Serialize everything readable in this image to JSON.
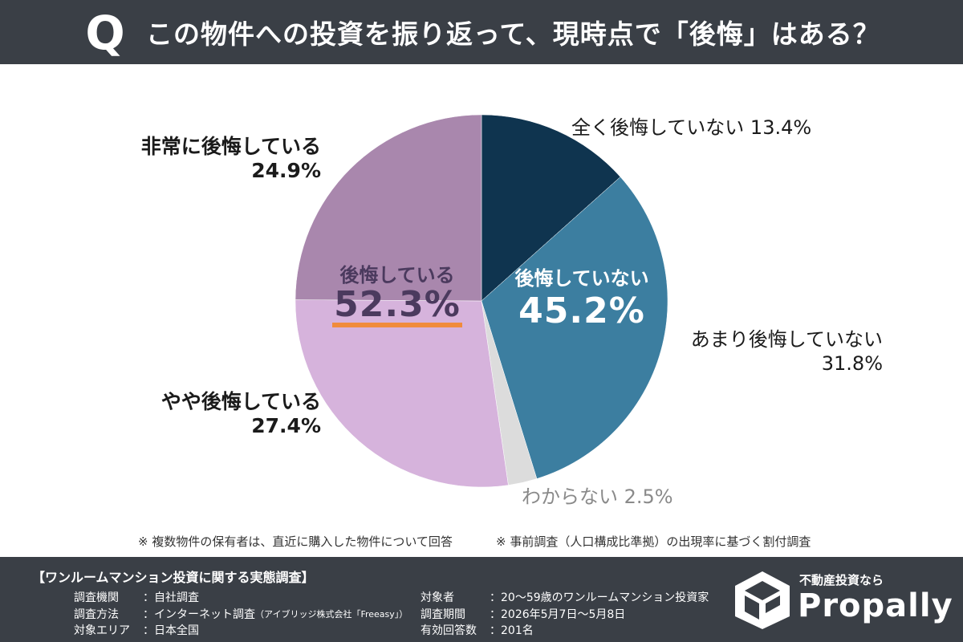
{
  "header": {
    "q_mark": "Q",
    "question": "この物件への投資を振り返って、現時点で「後悔」はある？"
  },
  "chart_data": {
    "type": "pie",
    "slices": [
      {
        "label": "全く後悔していない",
        "value": 13.4,
        "value_label": "13.4%",
        "color": "#0f344f"
      },
      {
        "label": "あまり後悔していない",
        "value": 31.8,
        "value_label": "31.8%",
        "color": "#3c7ea0"
      },
      {
        "label": "わからない",
        "value": 2.5,
        "value_label": "2.5%",
        "color": "#dcdcdc"
      },
      {
        "label": "やや後悔している",
        "value": 27.4,
        "value_label": "27.4%",
        "color": "#d6b3dc"
      },
      {
        "label": "非常に後悔している",
        "value": 24.9,
        "value_label": "24.9%",
        "color": "#a987ad"
      }
    ],
    "groups": [
      {
        "label": "後悔している",
        "value_label": "52.3%"
      },
      {
        "label": "後悔していない",
        "value_label": "45.2%"
      }
    ],
    "start": "top, clockwise"
  },
  "notes": [
    "※ 複数物件の保有者は、直近に購入した物件について回答",
    "※ 事前調査（人口構成比準拠）の出現率に基づく割付調査"
  ],
  "footer": {
    "title": "【ワンルームマンション投資に関する実態調査】",
    "left": [
      {
        "k": "調査機関",
        "v": "：自社調査"
      },
      {
        "k": "調査方法",
        "v": "：インターネット調査",
        "v_small": "（アイブリッジ株式会社「Freeasy」）"
      },
      {
        "k": "対象エリア",
        "v": "：日本全国"
      }
    ],
    "right": [
      {
        "k": "対象者",
        "v": "：20～59歳のワンルームマンション投資家"
      },
      {
        "k": "調査期間",
        "v": "：2026年5月7日～5月8日"
      },
      {
        "k": "有効回答数",
        "v": "：201名"
      }
    ],
    "brand_tagline": "不動産投資なら",
    "brand_name": "Propally"
  }
}
